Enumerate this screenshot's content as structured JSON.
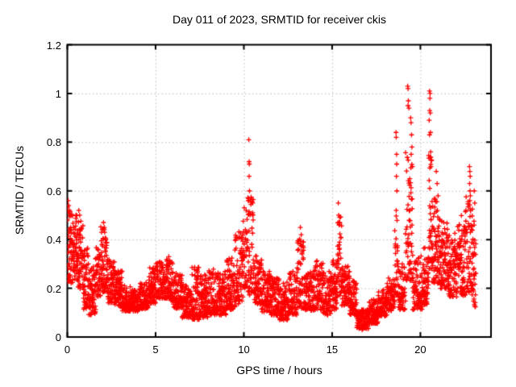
{
  "chart_data": {
    "type": "scatter",
    "title": "Day 011 of 2023, SRMTID for receiver ckis",
    "xlabel": "GPS time / hours",
    "ylabel": "SRMTID / TECUs",
    "xlim": [
      0,
      24
    ],
    "ylim": [
      0,
      1.2
    ],
    "xticks": [
      0,
      5,
      10,
      15,
      20
    ],
    "xtick_labels": [
      "0",
      "5",
      "10",
      "15",
      "20"
    ],
    "yticks": [
      0,
      0.2,
      0.4,
      0.6,
      0.8,
      1,
      1.2
    ],
    "ytick_labels": [
      "0",
      "0.2",
      "0.4",
      "0.6",
      "0.8",
      "1",
      "1.2"
    ],
    "grid": true,
    "legend": "none",
    "marker": "plus",
    "marker_color": "#ff0000",
    "grid_color": "#bbbbbb",
    "axis_color": "#000000",
    "background": "#ffffff",
    "seed": 20230111,
    "envelope_format": [
      "t_start_hr",
      "t_end_hr",
      "y_min",
      "y_max",
      "n_points"
    ],
    "envelope": [
      [
        0.0,
        0.3,
        0.2,
        0.56,
        40
      ],
      [
        0.3,
        0.6,
        0.22,
        0.52,
        36
      ],
      [
        0.6,
        0.9,
        0.18,
        0.5,
        36
      ],
      [
        0.9,
        1.2,
        0.1,
        0.38,
        36
      ],
      [
        1.2,
        1.6,
        0.08,
        0.3,
        46
      ],
      [
        1.6,
        1.9,
        0.15,
        0.38,
        36
      ],
      [
        1.9,
        2.3,
        0.17,
        0.47,
        46
      ],
      [
        2.3,
        2.7,
        0.13,
        0.33,
        46
      ],
      [
        2.7,
        3.1,
        0.12,
        0.28,
        46
      ],
      [
        3.1,
        3.6,
        0.1,
        0.22,
        56
      ],
      [
        3.6,
        4.1,
        0.1,
        0.2,
        56
      ],
      [
        4.1,
        4.6,
        0.11,
        0.23,
        56
      ],
      [
        4.6,
        5.0,
        0.13,
        0.3,
        45
      ],
      [
        5.0,
        5.6,
        0.15,
        0.32,
        66
      ],
      [
        5.6,
        6.0,
        0.14,
        0.33,
        45
      ],
      [
        6.0,
        6.5,
        0.11,
        0.27,
        56
      ],
      [
        6.5,
        7.0,
        0.07,
        0.23,
        56
      ],
      [
        7.0,
        7.6,
        0.06,
        0.3,
        66
      ],
      [
        7.6,
        8.0,
        0.07,
        0.27,
        45
      ],
      [
        8.0,
        8.5,
        0.08,
        0.3,
        56
      ],
      [
        8.5,
        9.0,
        0.08,
        0.28,
        56
      ],
      [
        9.0,
        9.5,
        0.1,
        0.34,
        56
      ],
      [
        9.5,
        9.95,
        0.12,
        0.45,
        50
      ],
      [
        9.95,
        10.2,
        0.18,
        0.55,
        28
      ],
      [
        10.2,
        10.55,
        0.15,
        0.6,
        38
      ],
      [
        10.55,
        11.0,
        0.12,
        0.35,
        50
      ],
      [
        11.0,
        11.5,
        0.09,
        0.28,
        56
      ],
      [
        11.5,
        12.0,
        0.08,
        0.26,
        56
      ],
      [
        12.0,
        12.5,
        0.06,
        0.24,
        56
      ],
      [
        12.5,
        13.0,
        0.08,
        0.28,
        56
      ],
      [
        13.0,
        13.4,
        0.1,
        0.42,
        45
      ],
      [
        13.4,
        14.0,
        0.1,
        0.28,
        66
      ],
      [
        14.0,
        14.5,
        0.1,
        0.33,
        56
      ],
      [
        14.5,
        15.0,
        0.08,
        0.28,
        56
      ],
      [
        15.0,
        15.3,
        0.1,
        0.33,
        34
      ],
      [
        15.3,
        15.55,
        0.15,
        0.52,
        28
      ],
      [
        15.55,
        16.0,
        0.12,
        0.3,
        50
      ],
      [
        16.0,
        16.4,
        0.08,
        0.24,
        45
      ],
      [
        16.4,
        17.1,
        0.03,
        0.12,
        80
      ],
      [
        17.1,
        17.6,
        0.05,
        0.16,
        56
      ],
      [
        17.6,
        18.1,
        0.08,
        0.2,
        56
      ],
      [
        18.1,
        18.55,
        0.1,
        0.25,
        50
      ],
      [
        18.55,
        18.75,
        0.15,
        0.6,
        22
      ],
      [
        18.75,
        19.15,
        0.1,
        0.32,
        45
      ],
      [
        19.15,
        19.55,
        0.2,
        0.8,
        40
      ],
      [
        19.55,
        20.1,
        0.1,
        0.35,
        60
      ],
      [
        20.1,
        20.45,
        0.12,
        0.38,
        40
      ],
      [
        20.45,
        20.65,
        0.25,
        0.8,
        24
      ],
      [
        20.65,
        21.1,
        0.2,
        0.6,
        50
      ],
      [
        21.1,
        21.6,
        0.18,
        0.5,
        56
      ],
      [
        21.6,
        22.1,
        0.15,
        0.45,
        56
      ],
      [
        22.1,
        22.55,
        0.15,
        0.52,
        50
      ],
      [
        22.55,
        22.9,
        0.15,
        0.62,
        40
      ],
      [
        22.9,
        23.15,
        0.1,
        0.55,
        28
      ]
    ],
    "spike_points": [
      [
        0.05,
        0.56
      ],
      [
        0.08,
        0.54
      ],
      [
        0.12,
        0.52
      ],
      [
        0.65,
        0.52
      ],
      [
        0.7,
        0.5
      ],
      [
        2.05,
        0.47
      ],
      [
        2.1,
        0.45
      ],
      [
        5.75,
        0.33
      ],
      [
        10.28,
        0.81
      ],
      [
        10.3,
        0.72
      ],
      [
        10.31,
        0.71
      ],
      [
        10.3,
        0.66
      ],
      [
        10.32,
        0.6
      ],
      [
        10.27,
        0.56
      ],
      [
        10.5,
        0.55
      ],
      [
        10.52,
        0.5
      ],
      [
        13.2,
        0.45
      ],
      [
        13.25,
        0.42
      ],
      [
        15.35,
        0.55
      ],
      [
        15.37,
        0.5
      ],
      [
        15.4,
        0.46
      ],
      [
        16.7,
        0.03
      ],
      [
        16.75,
        0.035
      ],
      [
        16.85,
        0.04
      ],
      [
        18.62,
        0.84
      ],
      [
        18.63,
        0.82
      ],
      [
        18.65,
        0.75
      ],
      [
        18.66,
        0.71
      ],
      [
        18.64,
        0.66
      ],
      [
        18.67,
        0.6
      ],
      [
        18.63,
        0.52
      ],
      [
        19.28,
        1.03
      ],
      [
        19.3,
        1.02
      ],
      [
        19.32,
        0.97
      ],
      [
        19.3,
        0.95
      ],
      [
        19.35,
        0.94
      ],
      [
        19.45,
        0.9
      ],
      [
        19.47,
        0.88
      ],
      [
        19.5,
        0.83
      ],
      [
        19.52,
        0.78
      ],
      [
        19.48,
        0.75
      ],
      [
        19.55,
        0.7
      ],
      [
        19.4,
        0.65
      ],
      [
        20.52,
        1.01
      ],
      [
        20.55,
        1.0
      ],
      [
        20.54,
        0.98
      ],
      [
        20.53,
        0.93
      ],
      [
        20.56,
        0.92
      ],
      [
        20.5,
        0.89
      ],
      [
        20.57,
        0.84
      ],
      [
        20.52,
        0.83
      ],
      [
        20.58,
        0.76
      ],
      [
        20.6,
        0.7
      ],
      [
        20.9,
        0.68
      ],
      [
        20.95,
        0.63
      ],
      [
        21.0,
        0.58
      ],
      [
        22.78,
        0.7
      ],
      [
        22.8,
        0.68
      ],
      [
        22.82,
        0.66
      ],
      [
        22.79,
        0.63
      ],
      [
        22.81,
        0.6
      ],
      [
        22.83,
        0.58
      ],
      [
        22.8,
        0.56
      ],
      [
        23.05,
        0.6
      ],
      [
        23.08,
        0.55
      ]
    ]
  }
}
